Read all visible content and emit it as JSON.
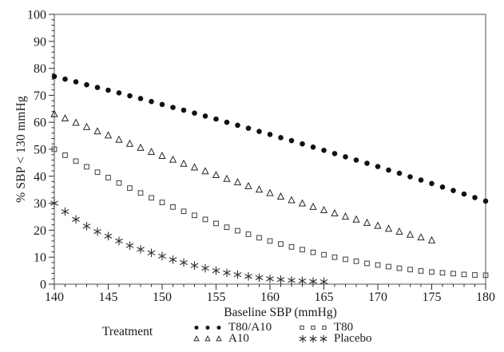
{
  "figure": {
    "background": "#ffffff",
    "frame_color": "#6e6e6e",
    "tick_color": "#2b2b2b",
    "text_color": "#1a1a1a"
  },
  "chart_data": {
    "type": "scatter",
    "title": "",
    "xlabel": "Baseline SBP (mmHg)",
    "ylabel": "% SBP < 130 mmHg",
    "legend_title": "Treatment",
    "xlim": [
      140,
      180
    ],
    "ylim": [
      0,
      100
    ],
    "x_major_ticks": [
      140,
      145,
      150,
      155,
      160,
      165,
      170,
      175,
      180
    ],
    "x_minor_step": 1,
    "y_major_ticks": [
      0,
      10,
      20,
      30,
      40,
      50,
      60,
      70,
      80,
      90,
      100
    ],
    "y_minor_step": 2,
    "grid": "off",
    "legend_position": "bottom",
    "series": [
      {
        "name": "T80/A10",
        "marker": "filled-circle",
        "color": "#111111",
        "x_start": 140,
        "x_step": 1,
        "values": [
          77,
          76,
          75,
          73.9,
          72.9,
          71.9,
          70.9,
          69.8,
          68.8,
          67.7,
          66.6,
          65.5,
          64.5,
          63.4,
          62.3,
          61.2,
          60,
          58.9,
          57.8,
          56.6,
          55.5,
          54.3,
          53.2,
          52,
          50.8,
          49.6,
          48.4,
          47.2,
          46,
          44.8,
          43.6,
          42.3,
          41.1,
          39.8,
          38.6,
          37.3,
          36,
          34.7,
          33.4,
          32.1,
          30.8
        ]
      },
      {
        "name": "A10",
        "marker": "open-triangle",
        "color": "#262626",
        "x_start": 140,
        "x_step": 1,
        "values": [
          63,
          61.4,
          59.8,
          58.2,
          56.6,
          55.1,
          53.5,
          52,
          50.5,
          49,
          47.5,
          46.1,
          44.6,
          43.2,
          41.8,
          40.4,
          39,
          37.7,
          36.3,
          35,
          33.7,
          32.4,
          31.1,
          29.9,
          28.6,
          27.4,
          26.2,
          25,
          23.9,
          22.7,
          21.6,
          20.5,
          19.4,
          18.3,
          17.3,
          16.2
        ]
      },
      {
        "name": "T80",
        "marker": "open-square",
        "color": "#3d3d3d",
        "x_start": 140,
        "x_step": 1,
        "values": [
          50,
          47.8,
          45.6,
          43.5,
          41.5,
          39.5,
          37.5,
          35.6,
          33.8,
          32,
          30.3,
          28.6,
          27,
          25.5,
          24,
          22.5,
          21.1,
          19.8,
          18.5,
          17.2,
          16,
          14.9,
          13.8,
          12.8,
          11.8,
          10.9,
          10,
          9.2,
          8.5,
          7.7,
          7.1,
          6.5,
          5.9,
          5.4,
          4.9,
          4.5,
          4.2,
          3.9,
          3.6,
          3.4,
          3.3
        ]
      },
      {
        "name": "Placebo",
        "marker": "asterisk",
        "color": "#2e2e2e",
        "x_start": 140,
        "x_step": 1,
        "values": [
          30,
          26.9,
          24,
          21.5,
          19.5,
          17.8,
          16,
          14.3,
          12.9,
          11.6,
          10.4,
          9.1,
          8,
          6.9,
          5.9,
          5,
          4.2,
          3.5,
          2.9,
          2.4,
          2,
          1.7,
          1.4,
          1.2,
          1,
          0.9
        ]
      }
    ]
  }
}
